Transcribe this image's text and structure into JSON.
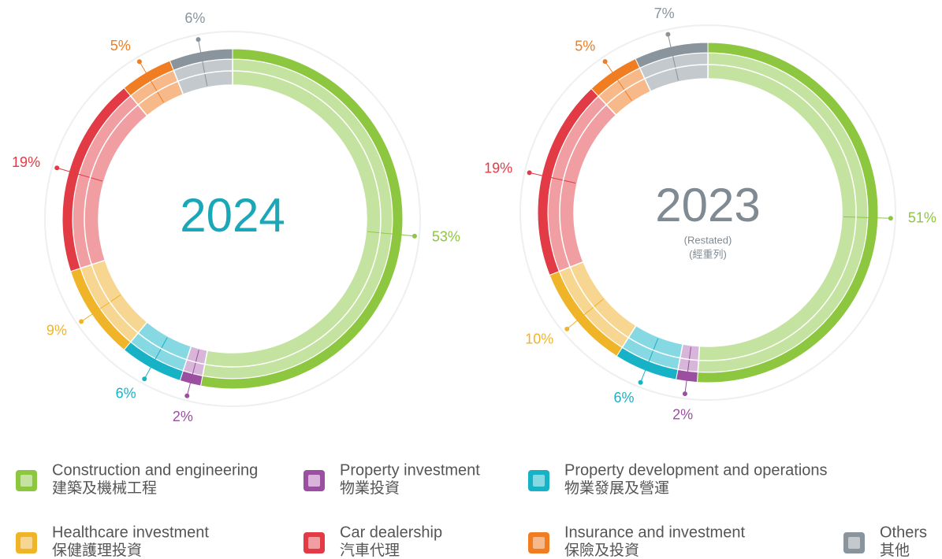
{
  "chart_data": [
    {
      "type": "pie",
      "title": "2024",
      "title_color": "#1aa8b8",
      "values": [
        53,
        2,
        6,
        9,
        19,
        5,
        6
      ],
      "value_labels": [
        "53%",
        "2%",
        "6%",
        "9%",
        "19%",
        "5%",
        "6%"
      ]
    },
    {
      "type": "pie",
      "title": "2023",
      "title_color": "#7f8a93",
      "subtitle": "(Restated)",
      "subtitle_zh": "(經重列)",
      "values": [
        51,
        2,
        6,
        10,
        19,
        5,
        7
      ],
      "value_labels": [
        "51%",
        "2%",
        "6%",
        "10%",
        "19%",
        "5%",
        "7%"
      ]
    }
  ],
  "legend": {
    "items": [
      {
        "label": "Construction and engineering",
        "label_zh": "建築及機械工程",
        "color": "#8dc63f",
        "light": "#c5e3a0"
      },
      {
        "label": "Property investment",
        "label_zh": "物業投資",
        "color": "#9b4fa0",
        "light": "#d8b6d9"
      },
      {
        "label": "Property development and operations",
        "label_zh": "物業發展及營運",
        "color": "#17b2c6",
        "light": "#86d9e3"
      },
      {
        "label": "Healthcare investment",
        "label_zh": "保健護理投資",
        "color": "#f0b428",
        "light": "#f6d690"
      },
      {
        "label": "Car dealership",
        "label_zh": "汽車代理",
        "color": "#e23b45",
        "light": "#f19ea2"
      },
      {
        "label": "Insurance and investment",
        "label_zh": "保險及投資",
        "color": "#f07d22",
        "light": "#f7b98a"
      },
      {
        "label": "Others",
        "label_zh": "其他",
        "color": "#8a949c",
        "light": "#c3c9cd"
      }
    ]
  }
}
